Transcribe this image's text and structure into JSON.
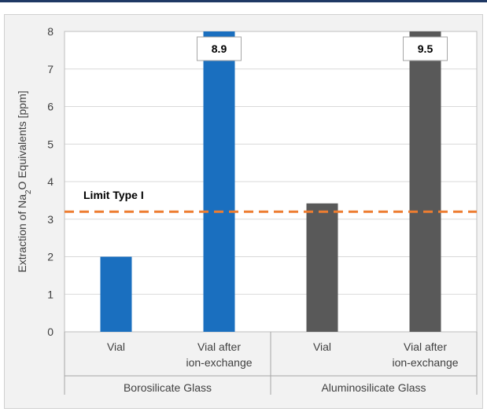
{
  "chart_data": {
    "type": "bar",
    "ylabel_parts": [
      "Extraction of Na",
      "2",
      "O Equivalents [ppm]"
    ],
    "ylim": [
      0,
      8
    ],
    "yticks": [
      "0",
      "1",
      "2",
      "3",
      "4",
      "5",
      "6",
      "7",
      "8"
    ],
    "groups": [
      "Borosilicate Glass",
      "Aluminosilicate Glass"
    ],
    "categories": [
      {
        "lines": [
          "Vial"
        ],
        "group": 0
      },
      {
        "lines": [
          "Vial after",
          "ion-exchange"
        ],
        "group": 0
      },
      {
        "lines": [
          "Vial"
        ],
        "group": 1
      },
      {
        "lines": [
          "Vial after",
          "ion-exchange"
        ],
        "group": 1
      }
    ],
    "values": [
      2.0,
      8.9,
      3.42,
      9.5
    ],
    "value_labels": [
      "",
      "8.9",
      "",
      "9.5"
    ],
    "bar_colors": [
      "#1a6fbf",
      "#1a6fbf",
      "#595959",
      "#595959"
    ],
    "limit": {
      "value": 3.2,
      "label": "Limit Type I",
      "color": "#ed7d31"
    },
    "grid": true
  }
}
